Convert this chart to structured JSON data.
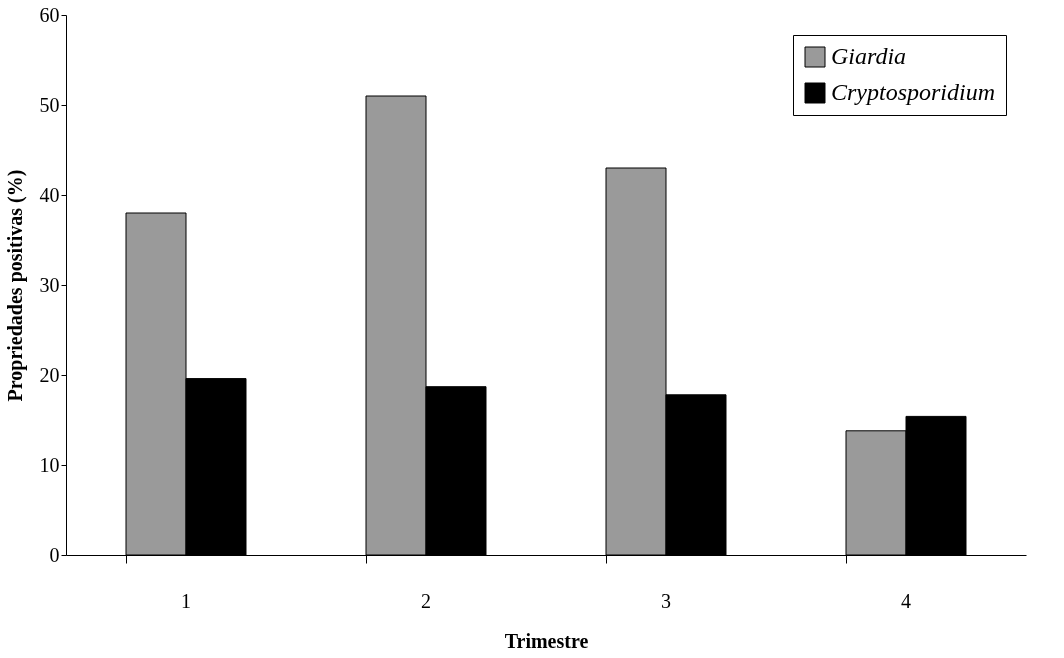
{
  "chart_data": {
    "type": "bar",
    "xlabel": "Trimestre",
    "ylabel": "Propriedades positivas (%)",
    "categories": [
      "1",
      "2",
      "3",
      "4"
    ],
    "series": [
      {
        "name": "Giardia",
        "color": "#9a9a9a",
        "values": [
          38,
          51,
          43,
          13.8
        ]
      },
      {
        "name": "Cryptosporidium",
        "color": "#000000",
        "values": [
          19.6,
          18.7,
          17.8,
          15.4
        ]
      }
    ],
    "ylim": [
      0,
      60
    ],
    "yticks": [
      0,
      10,
      20,
      30,
      40,
      50,
      60
    ],
    "grid": false,
    "legend": "top right"
  }
}
